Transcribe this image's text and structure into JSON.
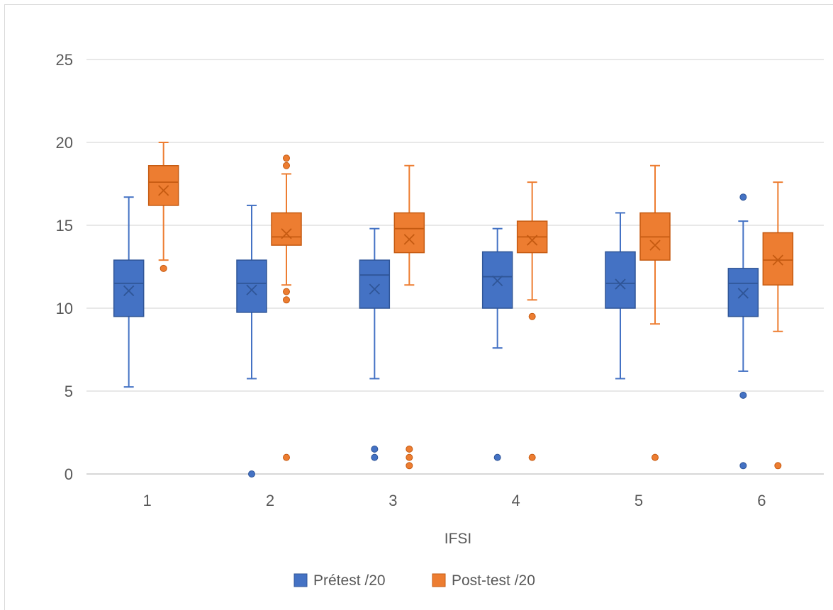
{
  "chart_data": {
    "type": "boxplot",
    "title": "",
    "xlabel": "IFSI",
    "ylabel": "",
    "ylim": [
      0,
      25
    ],
    "y_ticks": [
      "0",
      "5",
      "10",
      "15",
      "20",
      "25"
    ],
    "grid": true,
    "legend_position": "bottom",
    "categories": [
      "1",
      "2",
      "3",
      "4",
      "5",
      "6"
    ],
    "series": [
      {
        "name": "Prétest /20",
        "color": "#4472c4",
        "boxes": [
          {
            "category": "1",
            "min": 5.25,
            "q1": 9.5,
            "median": 11.5,
            "q3": 12.9,
            "max": 16.7,
            "mean": 11.05,
            "outliers": []
          },
          {
            "category": "2",
            "min": 5.75,
            "q1": 9.75,
            "median": 11.5,
            "q3": 12.9,
            "max": 16.2,
            "mean": 11.1,
            "outliers": [
              0
            ]
          },
          {
            "category": "3",
            "min": 5.75,
            "q1": 10.0,
            "median": 12.0,
            "q3": 12.9,
            "max": 14.8,
            "mean": 11.15,
            "outliers": [
              1.0,
              1.5
            ]
          },
          {
            "category": "4",
            "min": 7.6,
            "q1": 10.0,
            "median": 11.9,
            "q3": 13.4,
            "max": 14.8,
            "mean": 11.65,
            "outliers": [
              1.0
            ]
          },
          {
            "category": "5",
            "min": 5.75,
            "q1": 10.0,
            "median": 11.5,
            "q3": 13.4,
            "max": 15.75,
            "mean": 11.45,
            "outliers": []
          },
          {
            "category": "6",
            "min": 6.2,
            "q1": 9.5,
            "median": 11.5,
            "q3": 12.4,
            "max": 15.25,
            "mean": 10.9,
            "outliers": [
              0.5,
              4.75,
              16.7
            ]
          }
        ]
      },
      {
        "name": "Post-test /20",
        "color": "#ed7d31",
        "boxes": [
          {
            "category": "1",
            "min": 12.9,
            "q1": 16.2,
            "median": 17.6,
            "q3": 18.6,
            "max": 20.0,
            "mean": 17.1,
            "outliers": [
              12.4
            ]
          },
          {
            "category": "2",
            "min": 11.4,
            "q1": 13.8,
            "median": 14.3,
            "q3": 15.75,
            "max": 18.1,
            "mean": 14.5,
            "outliers": [
              1.0,
              10.5,
              11.0,
              18.6,
              19.05
            ]
          },
          {
            "category": "3",
            "min": 11.4,
            "q1": 13.35,
            "median": 14.8,
            "q3": 15.75,
            "max": 18.6,
            "mean": 14.15,
            "outliers": [
              0.5,
              1.0,
              1.5
            ]
          },
          {
            "category": "4",
            "min": 10.5,
            "q1": 13.35,
            "median": 14.3,
            "q3": 15.25,
            "max": 17.6,
            "mean": 14.1,
            "outliers": [
              1.0,
              9.5
            ]
          },
          {
            "category": "5",
            "min": 9.05,
            "q1": 12.9,
            "median": 14.3,
            "q3": 15.75,
            "max": 18.6,
            "mean": 13.8,
            "outliers": [
              1.0
            ]
          },
          {
            "category": "6",
            "min": 8.6,
            "q1": 11.4,
            "median": 12.9,
            "q3": 14.55,
            "max": 17.6,
            "mean": 12.9,
            "outliers": [
              0.5
            ]
          }
        ]
      }
    ]
  }
}
